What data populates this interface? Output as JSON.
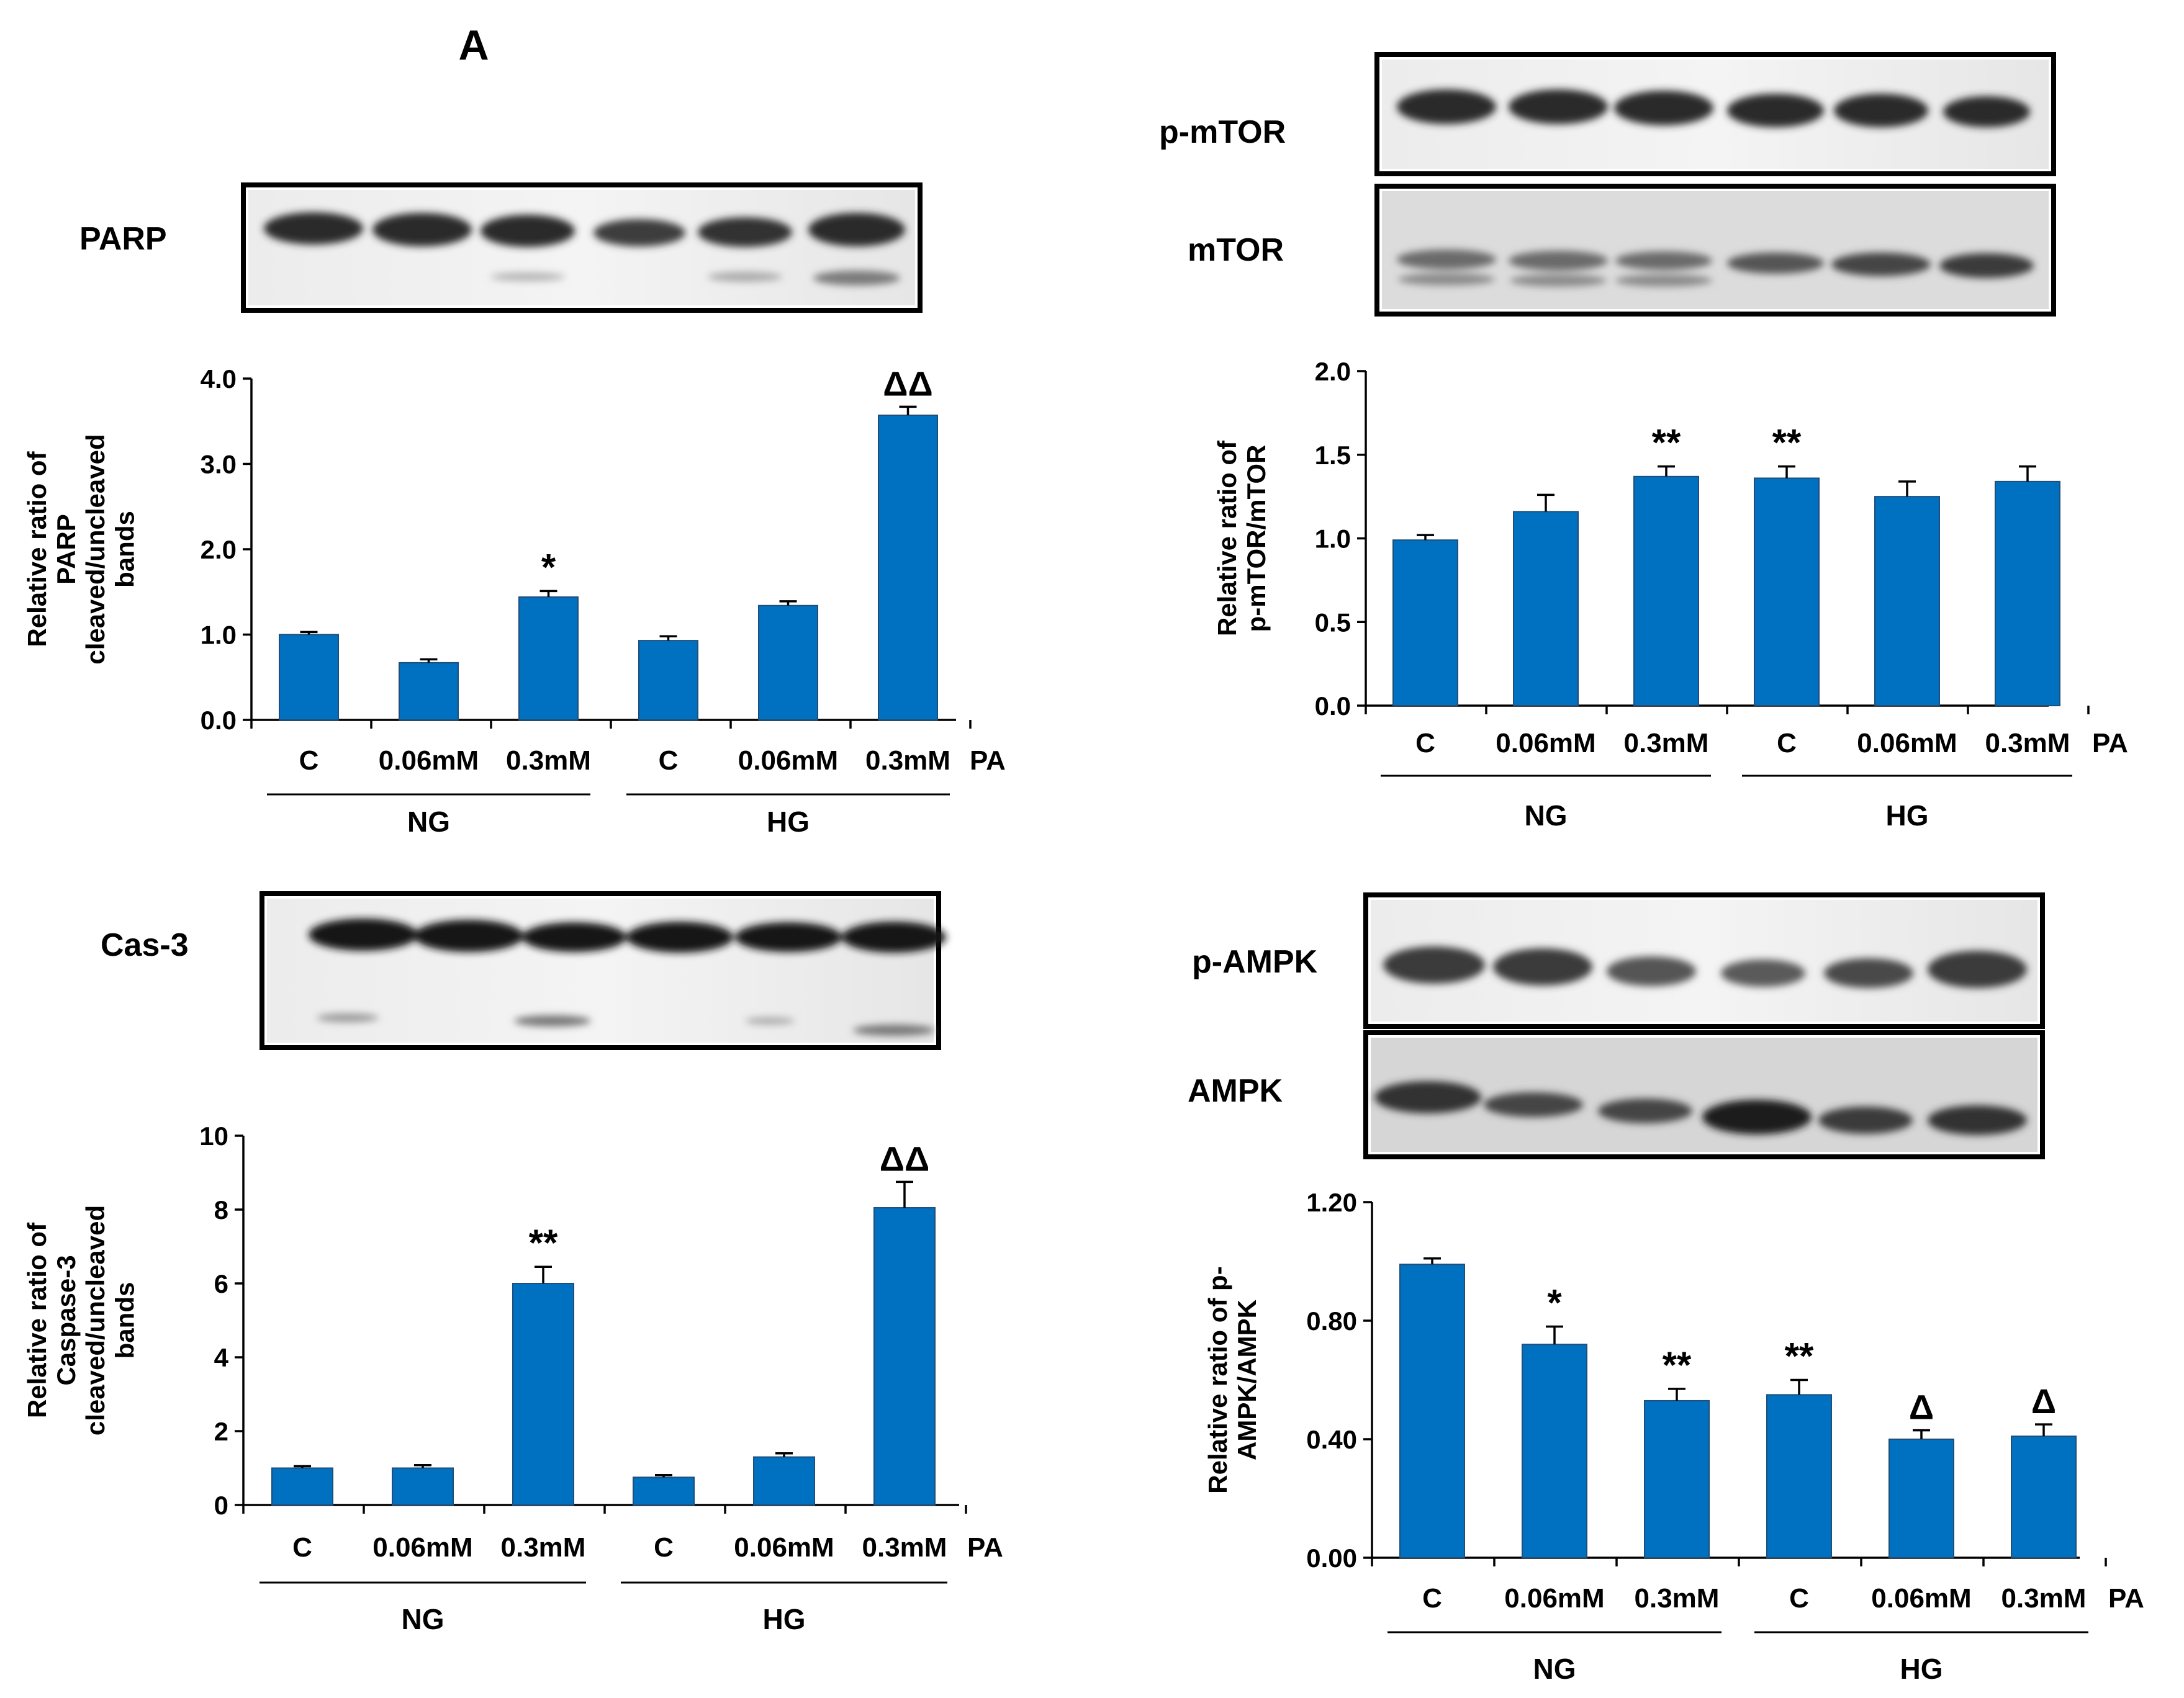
{
  "panel_label": "A",
  "blots": {
    "parp": "PARP",
    "cas3": "Cas-3",
    "p_mtor": "p-mTOR",
    "mtor": "mTOR",
    "p_ampk": "p-AMPK",
    "ampk": "AMPK"
  },
  "condition_labels": {
    "doses": [
      "C",
      "0.06mM",
      "0.3mM",
      "C",
      "0.06mM",
      "0.3mM"
    ],
    "treatment": "PA",
    "groups": [
      "NG",
      "HG"
    ]
  },
  "chart_data": [
    {
      "id": "parp",
      "type": "bar",
      "categories": [
        "C",
        "0.06mM",
        "0.3mM",
        "C",
        "0.06mM",
        "0.3mM"
      ],
      "values": [
        1.0,
        0.67,
        1.44,
        0.93,
        1.34,
        3.57
      ],
      "errors": [
        0.03,
        0.04,
        0.07,
        0.05,
        0.05,
        0.1
      ],
      "significance": [
        "",
        "",
        "*",
        "",
        "",
        "ΔΔ"
      ],
      "ylabel": [
        "Relative ratio of",
        "PARP",
        "cleaved/uncleaved",
        "bands"
      ],
      "ylim": [
        0,
        4
      ],
      "yticks": [
        "0.0",
        "1.0",
        "2.0",
        "3.0",
        "4.0"
      ],
      "grid": false
    },
    {
      "id": "caspase3",
      "type": "bar",
      "categories": [
        "C",
        "0.06mM",
        "0.3mM",
        "C",
        "0.06mM",
        "0.3mM"
      ],
      "values": [
        1.0,
        1.0,
        6.0,
        0.75,
        1.3,
        8.05
      ],
      "errors": [
        0.05,
        0.08,
        0.45,
        0.06,
        0.1,
        0.7
      ],
      "significance": [
        "",
        "",
        "**",
        "",
        "",
        "ΔΔ"
      ],
      "ylabel": [
        "Relative ratio of",
        "Caspase-3",
        "cleaved/uncleaved",
        "bands"
      ],
      "ylim": [
        0,
        10
      ],
      "yticks": [
        "0",
        "2",
        "4",
        "6",
        "8",
        "10"
      ],
      "grid": false
    },
    {
      "id": "p_mtor",
      "type": "bar",
      "categories": [
        "C",
        "0.06mM",
        "0.3mM",
        "C",
        "0.06mM",
        "0.3mM"
      ],
      "values": [
        0.99,
        1.16,
        1.37,
        1.36,
        1.25,
        1.34
      ],
      "errors": [
        0.03,
        0.1,
        0.06,
        0.07,
        0.09,
        0.09
      ],
      "significance": [
        "",
        "",
        "**",
        "**",
        "",
        ""
      ],
      "ylabel": [
        "Relative ratio of",
        "p-mTOR/mTOR"
      ],
      "ylim": [
        0,
        2
      ],
      "yticks": [
        "0.0",
        "0.5",
        "1.0",
        "1.5",
        "2.0"
      ],
      "grid": false
    },
    {
      "id": "p_ampk",
      "type": "bar",
      "categories": [
        "C",
        "0.06mM",
        "0.3mM",
        "C",
        "0.06mM",
        "0.3mM"
      ],
      "values": [
        0.99,
        0.72,
        0.53,
        0.55,
        0.4,
        0.41
      ],
      "errors": [
        0.02,
        0.06,
        0.04,
        0.05,
        0.03,
        0.04
      ],
      "significance": [
        "",
        "*",
        "**",
        "**",
        "Δ",
        "Δ"
      ],
      "ylabel": [
        "Relative ratio of p-",
        "AMPK/AMPK"
      ],
      "ylim": [
        0,
        1.2
      ],
      "yticks": [
        "0.00",
        "0.40",
        "0.80",
        "1.20"
      ],
      "grid": false
    }
  ]
}
